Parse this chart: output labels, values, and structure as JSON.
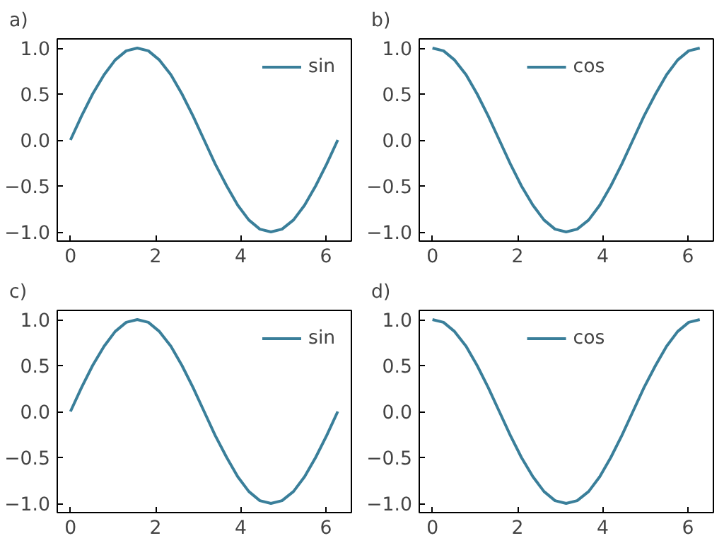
{
  "chart_data": [
    {
      "type": "line",
      "title": "a)",
      "x": [
        0,
        0.26,
        0.52,
        0.79,
        1.05,
        1.31,
        1.57,
        1.83,
        2.09,
        2.36,
        2.62,
        2.88,
        3.14,
        3.4,
        3.67,
        3.93,
        4.19,
        4.45,
        4.71,
        4.97,
        5.24,
        5.5,
        5.76,
        6.02,
        6.28
      ],
      "series": [
        {
          "name": "sin",
          "color": "#3a7f9a",
          "values": [
            0,
            0.26,
            0.5,
            0.71,
            0.87,
            0.97,
            1,
            0.97,
            0.87,
            0.71,
            0.5,
            0.26,
            0,
            -0.26,
            -0.5,
            -0.71,
            -0.87,
            -0.97,
            -1,
            -0.97,
            -0.87,
            -0.71,
            -0.5,
            -0.26,
            0
          ]
        }
      ],
      "xlim": [
        -0.31,
        6.6
      ],
      "ylim": [
        -1.1,
        1.1
      ],
      "xticks": [
        0,
        2,
        4,
        6
      ],
      "yticks": [
        {
          "value": -1,
          "label": "−1.0"
        },
        {
          "value": -0.5,
          "label": "−0.5"
        },
        {
          "value": 0,
          "label": "0.0"
        },
        {
          "value": 0.5,
          "label": "0.5"
        },
        {
          "value": 1,
          "label": "1.0"
        }
      ],
      "legend": "top right",
      "grid": false,
      "line_style": "solid"
    },
    {
      "type": "line",
      "title": "b)",
      "x": [
        0,
        0.26,
        0.52,
        0.79,
        1.05,
        1.31,
        1.57,
        1.83,
        2.09,
        2.36,
        2.62,
        2.88,
        3.14,
        3.4,
        3.67,
        3.93,
        4.19,
        4.45,
        4.71,
        4.97,
        5.24,
        5.5,
        5.76,
        6.02,
        6.28
      ],
      "series": [
        {
          "name": "cos",
          "color": "#3a7f9a",
          "values": [
            1,
            0.97,
            0.87,
            0.71,
            0.5,
            0.26,
            0,
            -0.26,
            -0.5,
            -0.71,
            -0.87,
            -0.97,
            -1,
            -0.97,
            -0.87,
            -0.71,
            -0.5,
            -0.26,
            0,
            0.26,
            0.5,
            0.71,
            0.87,
            0.97,
            1
          ]
        }
      ],
      "xlim": [
        -0.31,
        6.6
      ],
      "ylim": [
        -1.1,
        1.1
      ],
      "xticks": [
        0,
        2,
        4,
        6
      ],
      "yticks": [
        {
          "value": -1,
          "label": "−1.0"
        },
        {
          "value": -0.5,
          "label": "−0.5"
        },
        {
          "value": 0,
          "label": "0.0"
        },
        {
          "value": 0.5,
          "label": "0.5"
        },
        {
          "value": 1,
          "label": "1.0"
        }
      ],
      "legend": "top",
      "grid": false,
      "line_style": "solid"
    },
    {
      "type": "line",
      "title": "c)",
      "x": [
        0,
        0.26,
        0.52,
        0.79,
        1.05,
        1.31,
        1.57,
        1.83,
        2.09,
        2.36,
        2.62,
        2.88,
        3.14,
        3.4,
        3.67,
        3.93,
        4.19,
        4.45,
        4.71,
        4.97,
        5.24,
        5.5,
        5.76,
        6.02,
        6.28
      ],
      "series": [
        {
          "name": "sin",
          "color": "#3a7f9a",
          "values": [
            0,
            0.26,
            0.5,
            0.71,
            0.87,
            0.97,
            1,
            0.97,
            0.87,
            0.71,
            0.5,
            0.26,
            0,
            -0.26,
            -0.5,
            -0.71,
            -0.87,
            -0.97,
            -1,
            -0.97,
            -0.87,
            -0.71,
            -0.5,
            -0.26,
            0
          ]
        }
      ],
      "xlim": [
        -0.31,
        6.6
      ],
      "ylim": [
        -1.1,
        1.1
      ],
      "xticks": [
        0,
        2,
        4,
        6
      ],
      "yticks": [
        {
          "value": -1,
          "label": "−1.0"
        },
        {
          "value": -0.5,
          "label": "−0.5"
        },
        {
          "value": 0,
          "label": "0.0"
        },
        {
          "value": 0.5,
          "label": "0.5"
        },
        {
          "value": 1,
          "label": "1.0"
        }
      ],
      "legend": "top right",
      "grid": false,
      "line_style": "solid"
    },
    {
      "type": "line",
      "title": "d)",
      "x": [
        0,
        0.26,
        0.52,
        0.79,
        1.05,
        1.31,
        1.57,
        1.83,
        2.09,
        2.36,
        2.62,
        2.88,
        3.14,
        3.4,
        3.67,
        3.93,
        4.19,
        4.45,
        4.71,
        4.97,
        5.24,
        5.5,
        5.76,
        6.02,
        6.28
      ],
      "series": [
        {
          "name": "cos",
          "color": "#3a7f9a",
          "values": [
            1,
            0.97,
            0.87,
            0.71,
            0.5,
            0.26,
            0,
            -0.26,
            -0.5,
            -0.71,
            -0.87,
            -0.97,
            -1,
            -0.97,
            -0.87,
            -0.71,
            -0.5,
            -0.26,
            0,
            0.26,
            0.5,
            0.71,
            0.87,
            0.97,
            1
          ]
        }
      ],
      "xlim": [
        -0.31,
        6.6
      ],
      "ylim": [
        -1.1,
        1.1
      ],
      "xticks": [
        0,
        2,
        4,
        6
      ],
      "yticks": [
        {
          "value": -1,
          "label": "−1.0"
        },
        {
          "value": -0.5,
          "label": "−0.5"
        },
        {
          "value": 0,
          "label": "0.0"
        },
        {
          "value": 0.5,
          "label": "0.5"
        },
        {
          "value": 1,
          "label": "1.0"
        }
      ],
      "legend": "top",
      "grid": false,
      "line_style": "solid"
    }
  ]
}
